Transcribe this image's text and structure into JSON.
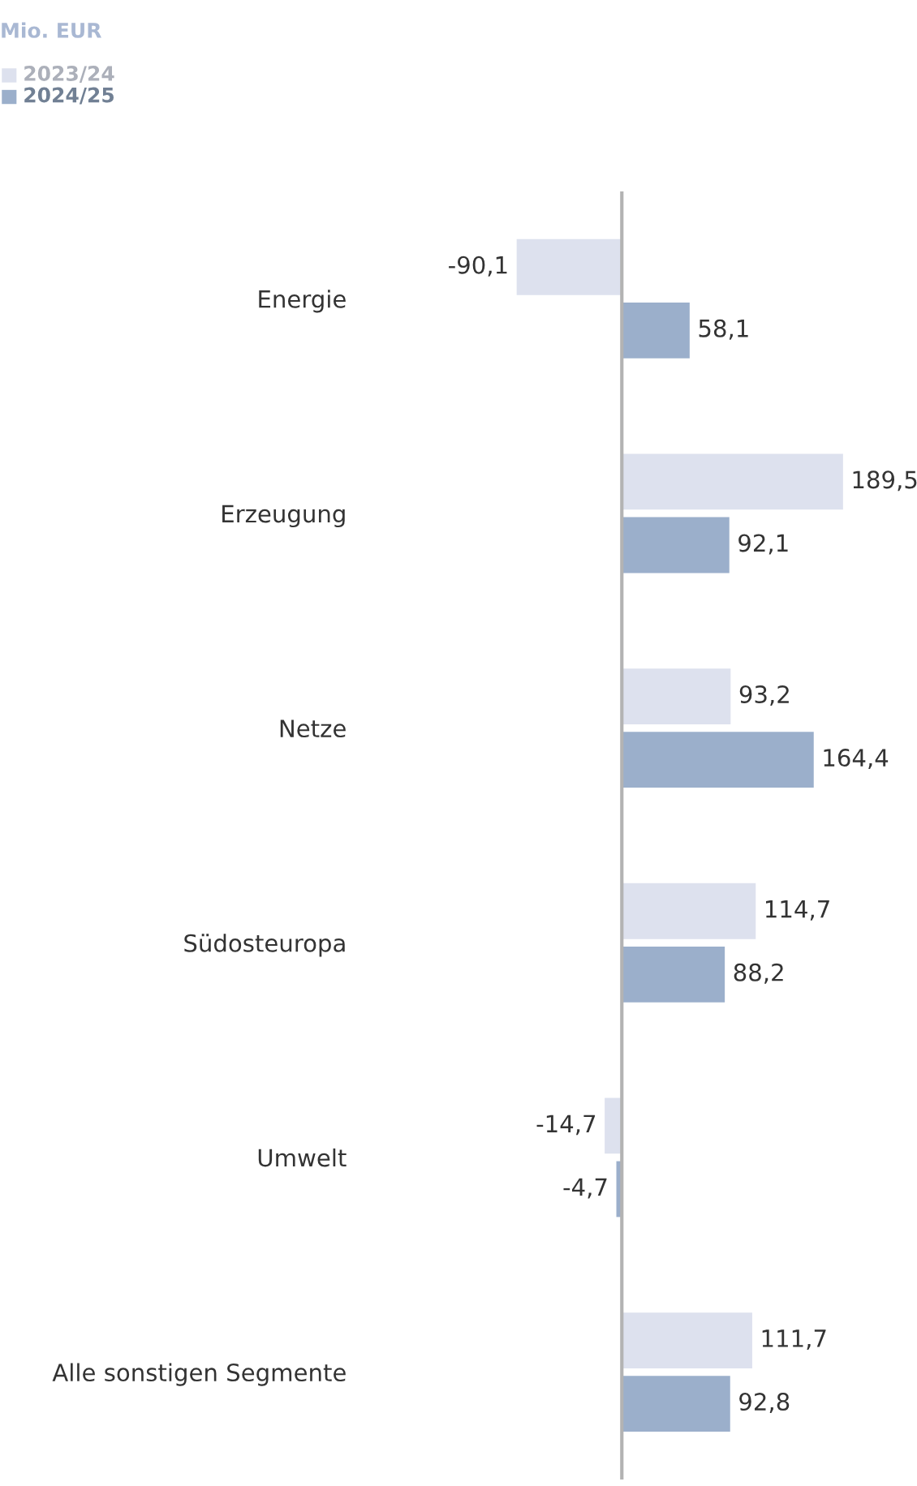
{
  "chart_data": {
    "type": "bar",
    "orientation": "horizontal",
    "title": "Mio. EUR",
    "categories": [
      "Energie",
      "Erzeugung",
      "Netze",
      "Südosteuropa",
      "Umwelt",
      "Alle sonstigen Segmente"
    ],
    "series": [
      {
        "name": "2023/24",
        "color": "#dde1ee",
        "values": [
          -90.1,
          189.5,
          93.2,
          114.7,
          -14.7,
          111.7
        ],
        "value_labels": [
          "-90,1",
          "189,5",
          "93,2",
          "114,7",
          "-14,7",
          "111,7"
        ]
      },
      {
        "name": "2024/25",
        "color": "#9bafcb",
        "values": [
          58.1,
          92.1,
          164.4,
          88.2,
          -4.7,
          92.8
        ],
        "value_labels": [
          "58,1",
          "92,1",
          "164,4",
          "88,2",
          "-4,7",
          "92,8"
        ]
      }
    ],
    "legend": "top left",
    "grid": false
  }
}
